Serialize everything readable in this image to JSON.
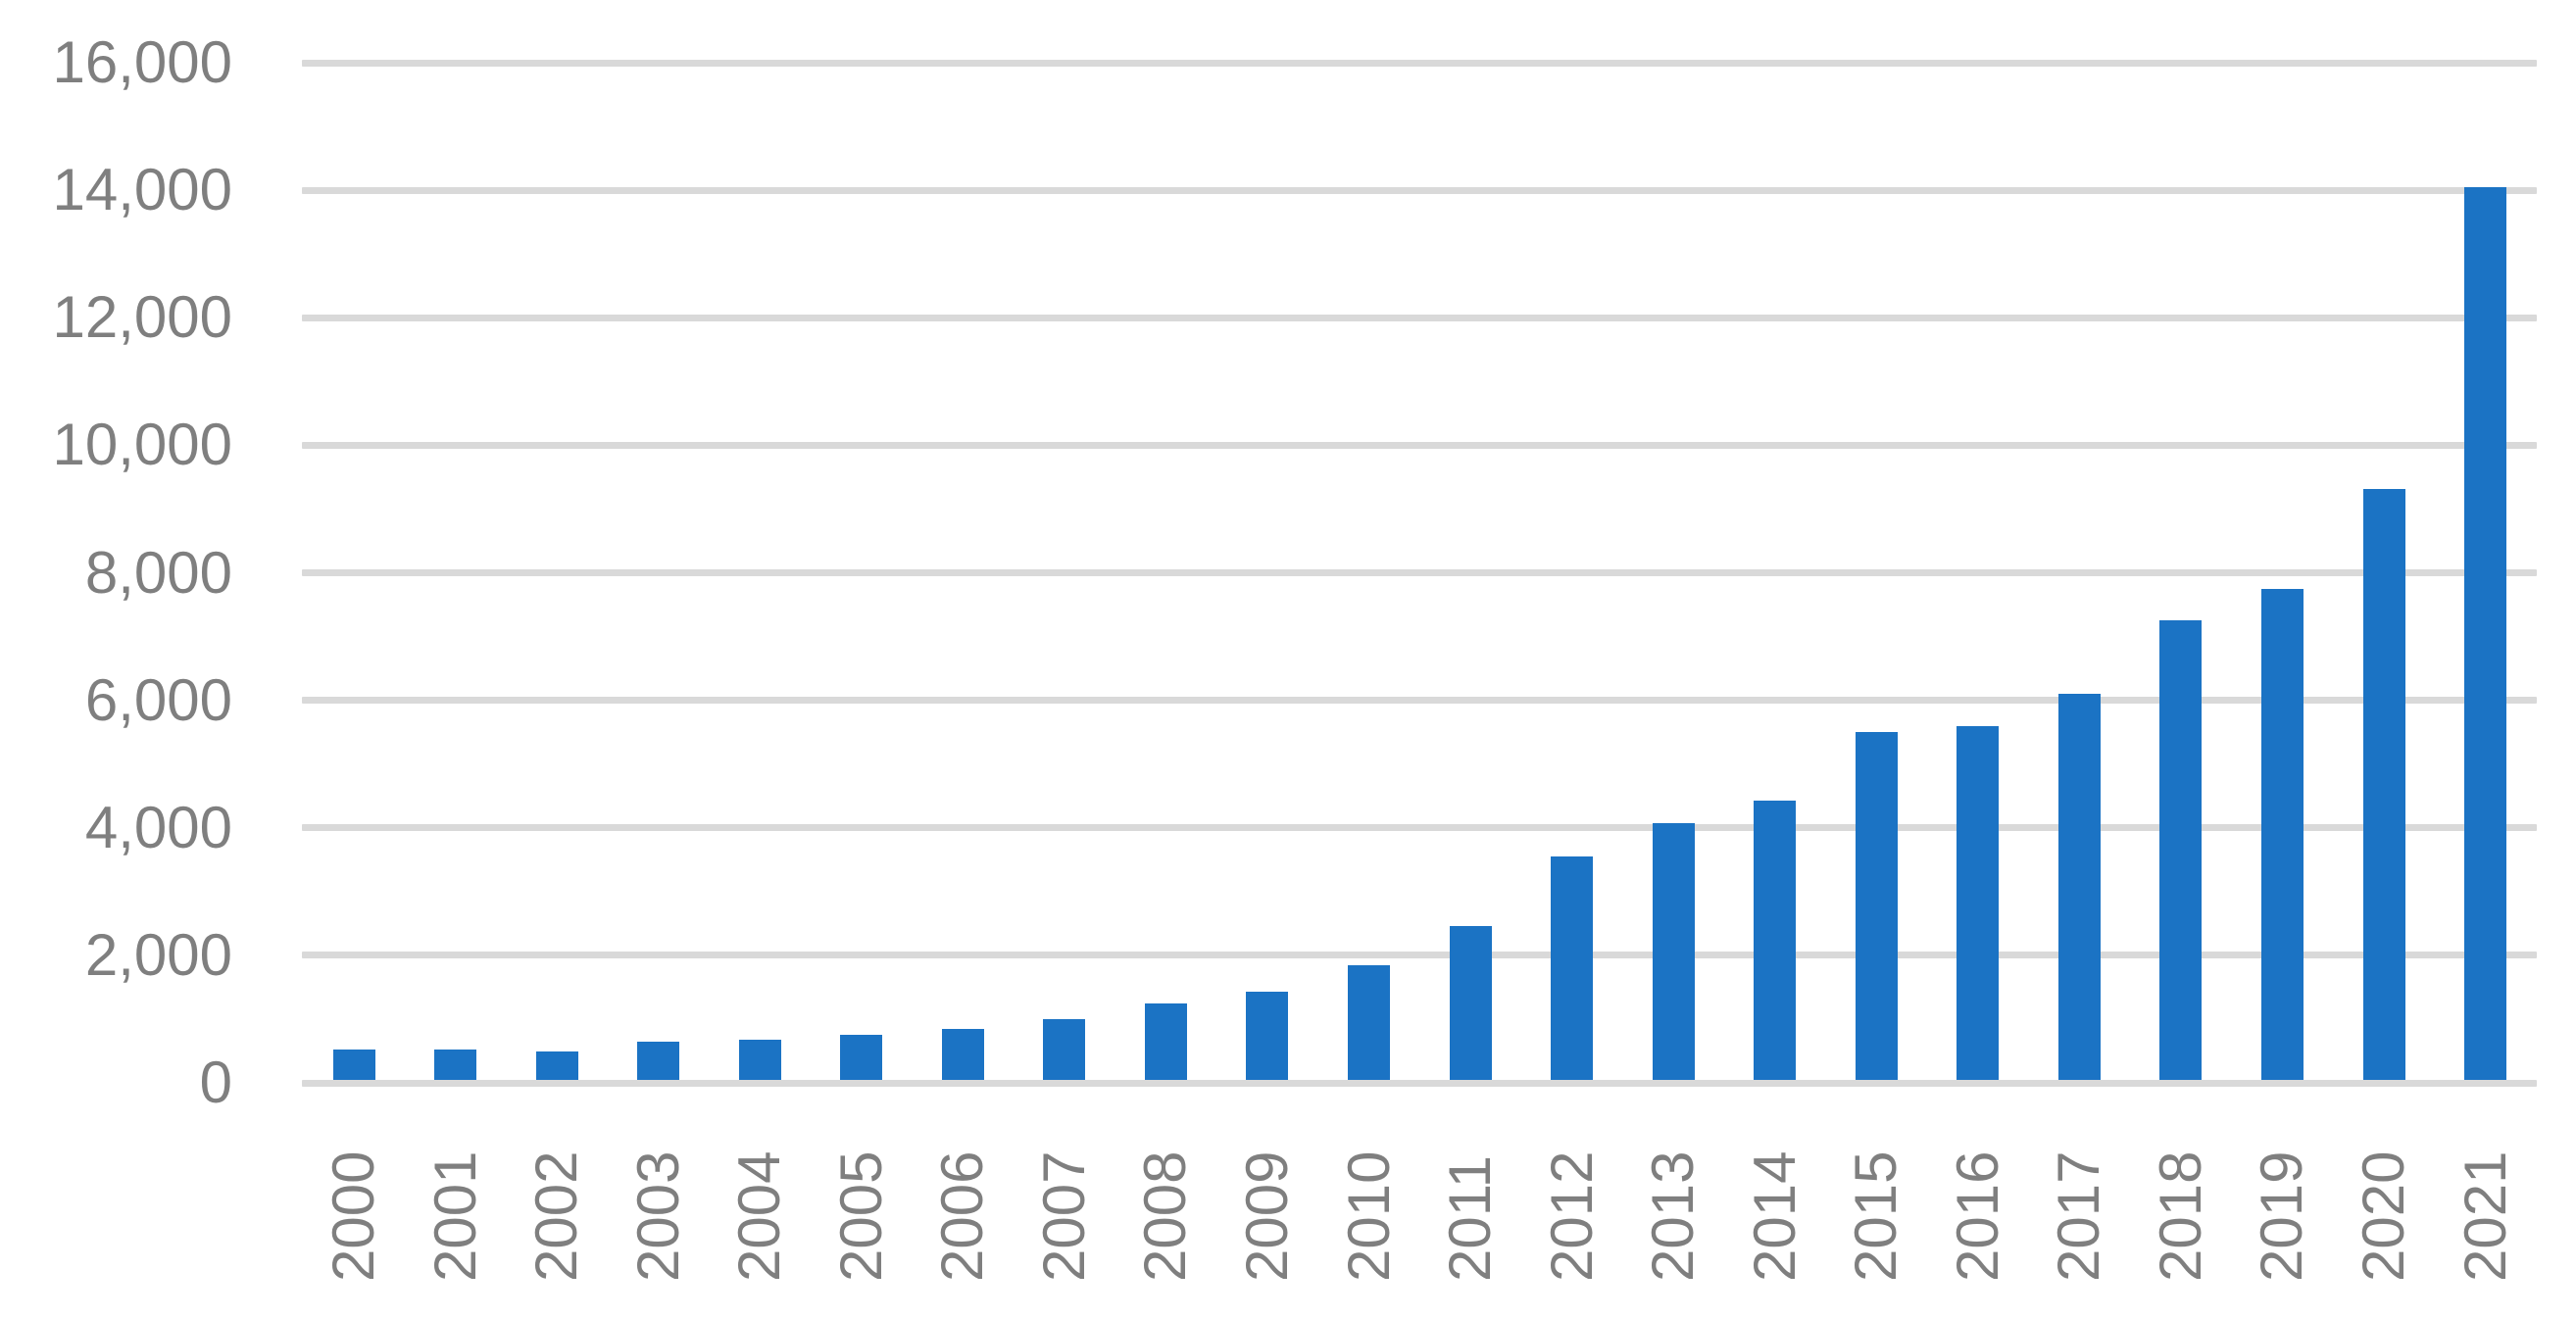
{
  "chart_data": {
    "type": "bar",
    "title": "",
    "xlabel": "",
    "ylabel": "",
    "categories": [
      "2000",
      "2001",
      "2002",
      "2003",
      "2004",
      "2005",
      "2006",
      "2007",
      "2008",
      "2009",
      "2010",
      "2011",
      "2012",
      "2013",
      "2014",
      "2015",
      "2016",
      "2017",
      "2018",
      "2019",
      "2020",
      "2021"
    ],
    "values": [
      520,
      525,
      495,
      650,
      670,
      760,
      840,
      1005,
      1245,
      1430,
      1840,
      2460,
      3550,
      4080,
      4420,
      5500,
      5600,
      6100,
      7250,
      7740,
      9320,
      14050
    ],
    "ylim": [
      0,
      16000
    ],
    "ytick_interval": 2000,
    "ytick_labels_top_to_bottom": [
      "16,000",
      "14,000",
      "12,000",
      "10,000",
      "8,000",
      "6,000",
      "4,000",
      "2,000",
      "0"
    ],
    "grid": true,
    "legend": false,
    "legend_position": "none",
    "colors": {
      "bar": "#1B73C4",
      "gridline": "#D9D9D9",
      "tick_label": "#7F7F7F",
      "background": "#FFFFFF"
    }
  }
}
